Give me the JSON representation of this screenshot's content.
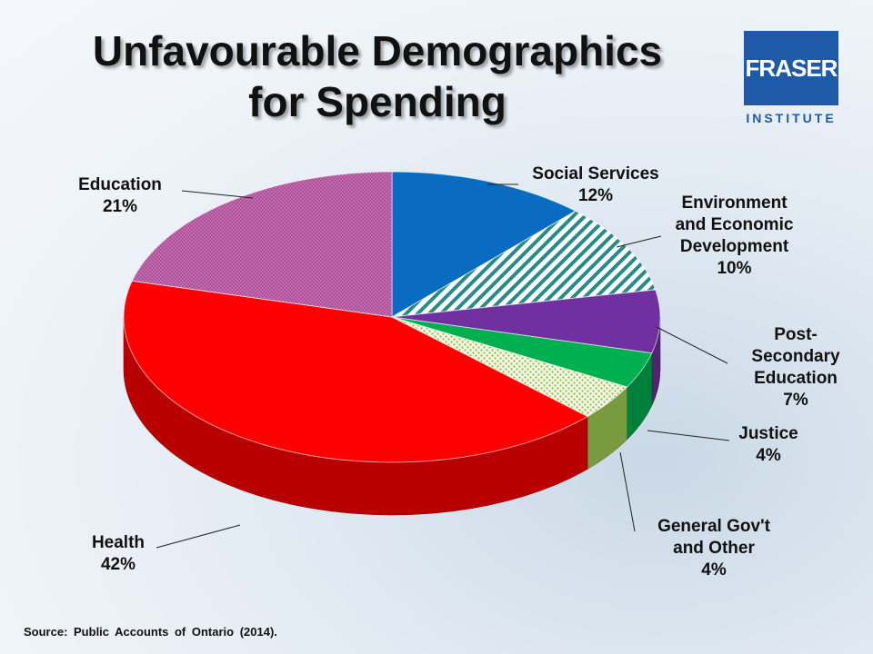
{
  "title_line1": "Unfavourable Demographics",
  "title_line2": "for Spending",
  "logo": {
    "text": "FRASER",
    "subtext": "INSTITUTE",
    "color": "#1e5aa8"
  },
  "source": "Source: Public Accounts of Ontario (2014).",
  "chart_data": {
    "type": "pie",
    "style": "3d",
    "slices": [
      {
        "name": "Social Services",
        "label_lines": [
          "Social Services"
        ],
        "value": 12,
        "value_label": "12%",
        "color": "#0a6cc0",
        "pattern": "solid"
      },
      {
        "name": "Environment and Economic Development",
        "label_lines": [
          "Environment",
          "and Economic",
          "Development"
        ],
        "value": 10,
        "value_label": "10%",
        "color": "#2a8a8a",
        "pattern": "diagonal-stripes"
      },
      {
        "name": "Post-Secondary Education",
        "label_lines": [
          "Post-",
          "Secondary",
          "Education"
        ],
        "value": 7,
        "value_label": "7%",
        "color": "#7030a0",
        "pattern": "solid"
      },
      {
        "name": "Justice",
        "label_lines": [
          "Justice"
        ],
        "value": 4,
        "value_label": "4%",
        "color": "#00b050",
        "pattern": "solid"
      },
      {
        "name": "General Gov't and Other",
        "label_lines": [
          "General Gov't",
          "and Other"
        ],
        "value": 4,
        "value_label": "4%",
        "color": "#9bbb59",
        "pattern": "dots"
      },
      {
        "name": "Health",
        "label_lines": [
          "Health"
        ],
        "value": 42,
        "value_label": "42%",
        "color": "#ff0000",
        "pattern": "solid"
      },
      {
        "name": "Education",
        "label_lines": [
          "Education"
        ],
        "value": 21,
        "value_label": "21%",
        "color": "#b0509a",
        "pattern": "fine-dots"
      }
    ]
  }
}
